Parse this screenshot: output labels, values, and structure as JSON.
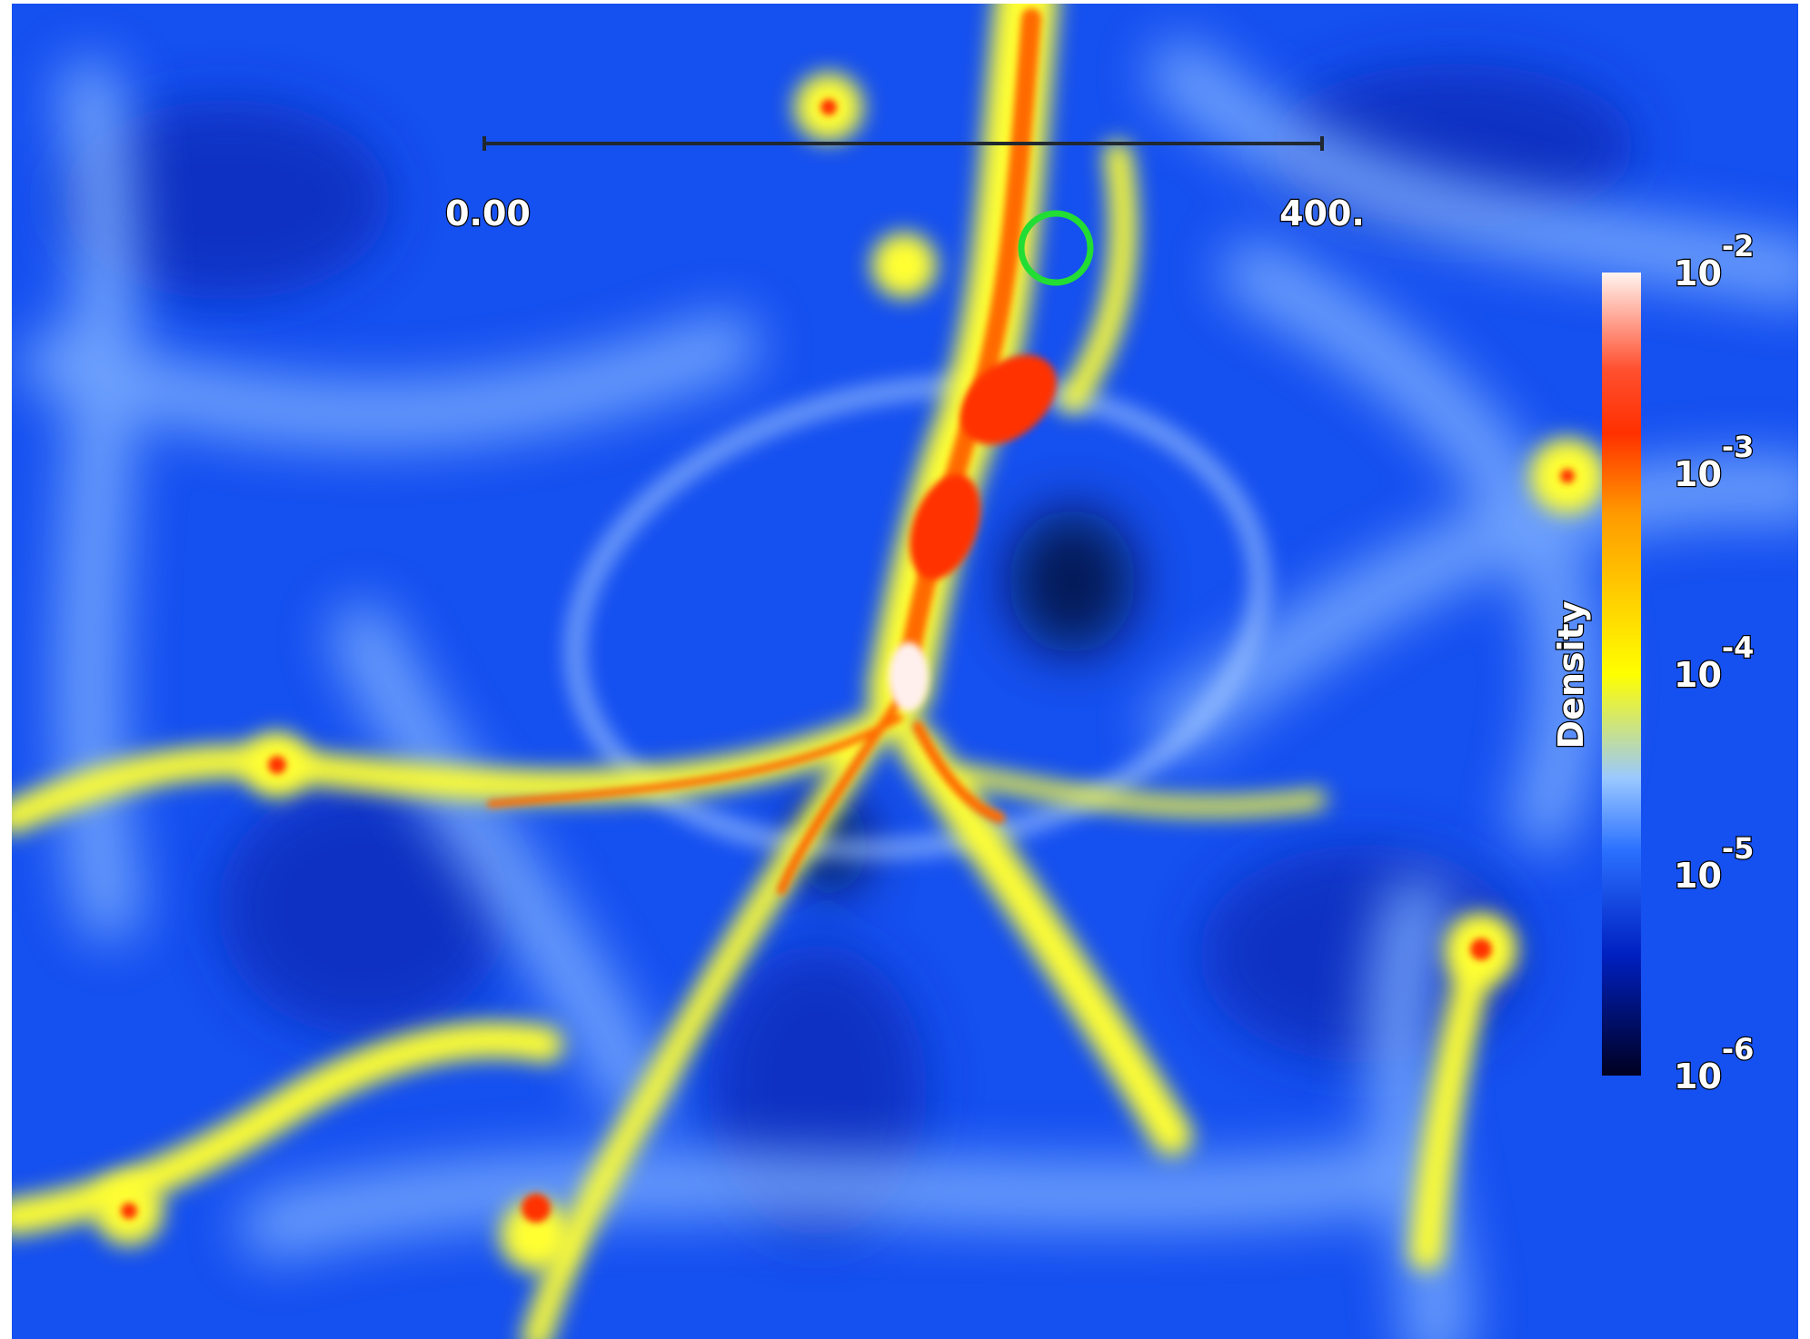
{
  "scale_bar": {
    "start_label": "0.00",
    "end_label": "400."
  },
  "colorbar": {
    "title": "Density",
    "ticks": [
      {
        "base": "10",
        "exponent": "-2"
      },
      {
        "base": "10",
        "exponent": "-3"
      },
      {
        "base": "10",
        "exponent": "-4"
      },
      {
        "base": "10",
        "exponent": "-5"
      },
      {
        "base": "10",
        "exponent": "-6"
      }
    ]
  }
}
